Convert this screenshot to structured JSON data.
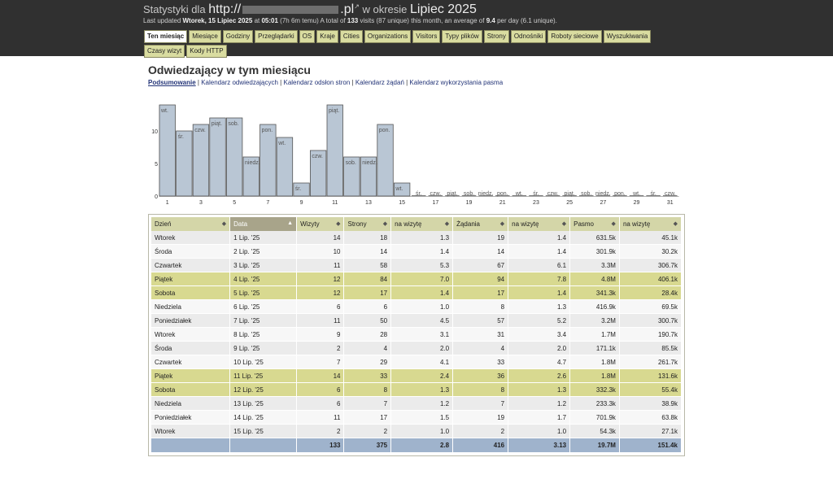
{
  "header": {
    "title_prefix": "Statystyki dla",
    "url_start": "http://",
    "url_end": ".pl",
    "period_label": "w okresie",
    "period": "Lipiec 2025",
    "last_updated_label": "Last updated",
    "last_updated_date": "Wtorek, 15 Lipiec 2025",
    "at_label": "at",
    "last_updated_time": "05:01",
    "time_ago": "(7h 6m temu)",
    "total_prefix": "A total of",
    "total_visits": "133",
    "total_suffix": "visits (87 unique) this month, an average of",
    "avg_per_day": "9.4",
    "avg_suffix": "per day (6.1 unique)."
  },
  "tabs": [
    {
      "label": "Ten miesiąc",
      "active": true
    },
    {
      "label": "Miesiące"
    },
    {
      "label": "Godziny"
    },
    {
      "label": "Przeglądarki"
    },
    {
      "label": "OS"
    },
    {
      "label": "Kraje"
    },
    {
      "label": "Cities"
    },
    {
      "label": "Organizations"
    },
    {
      "label": "Visitors"
    },
    {
      "label": "Typy plików"
    },
    {
      "label": "Strony"
    },
    {
      "label": "Odnośniki"
    },
    {
      "label": "Roboty sieciowe"
    },
    {
      "label": "Wyszukiwania"
    },
    {
      "label": "Czasy wizyt"
    },
    {
      "label": "Kody HTTP"
    }
  ],
  "section": {
    "title": "Odwiedzający w tym miesiącu",
    "links": [
      {
        "label": "Podsumowanie",
        "current": true
      },
      {
        "label": "Kalendarz odwiedzających"
      },
      {
        "label": "Kalendarz odsłon stron"
      },
      {
        "label": "Kalendarz żądań"
      },
      {
        "label": "Kalendarz wykorzystania pasma"
      }
    ],
    "separator": " | "
  },
  "chart_data": {
    "type": "bar",
    "categories": [
      "1",
      "2",
      "3",
      "4",
      "5",
      "6",
      "7",
      "8",
      "9",
      "10",
      "11",
      "12",
      "13",
      "14",
      "15",
      "16",
      "17",
      "18",
      "19",
      "20",
      "21",
      "22",
      "23",
      "24",
      "25",
      "26",
      "27",
      "28",
      "29",
      "30",
      "31"
    ],
    "x_tick_labels": [
      "1",
      "",
      "3",
      "",
      "5",
      "",
      "7",
      "",
      "9",
      "",
      "11",
      "",
      "13",
      "",
      "15",
      "",
      "17",
      "",
      "19",
      "",
      "21",
      "",
      "23",
      "",
      "25",
      "",
      "27",
      "",
      "29",
      "",
      "31"
    ],
    "day_labels": [
      "wt.",
      "śr.",
      "czw.",
      "piąt.",
      "sob.",
      "niedz.",
      "pon.",
      "wt.",
      "śr.",
      "czw.",
      "piąt.",
      "sob.",
      "niedz.",
      "pon.",
      "wt.",
      "śr.",
      "czw.",
      "piąt.",
      "sob.",
      "niedz.",
      "pon.",
      "wt.",
      "śr.",
      "czw.",
      "piąt.",
      "sob.",
      "niedz.",
      "pon.",
      "wt.",
      "śr.",
      "czw."
    ],
    "values": [
      14,
      10,
      11,
      12,
      12,
      6,
      11,
      9,
      2,
      7,
      14,
      6,
      6,
      11,
      2,
      null,
      null,
      null,
      null,
      null,
      null,
      null,
      null,
      null,
      null,
      null,
      null,
      null,
      null,
      null,
      null
    ],
    "y_ticks": [
      "0",
      "5",
      "10"
    ],
    "ylim": [
      0,
      14
    ],
    "bar_color": "#b9c6d4"
  },
  "table": {
    "headers": [
      "Dzień",
      "Data",
      "Wizyty",
      "Strony",
      "na wizytę",
      "Żądania",
      "na wizytę",
      "Pasmo",
      "na wizytę"
    ],
    "rows": [
      {
        "day": "Wtorek",
        "date": "1 Lip. '25",
        "visits": "14",
        "pages": "18",
        "ppv": "1.3",
        "req": "19",
        "rpv": "1.4",
        "bw": "631.5k",
        "bwpv": "45.1k"
      },
      {
        "day": "Środa",
        "date": "2 Lip. '25",
        "visits": "10",
        "pages": "14",
        "ppv": "1.4",
        "req": "14",
        "rpv": "1.4",
        "bw": "301.9k",
        "bwpv": "30.2k"
      },
      {
        "day": "Czwartek",
        "date": "3 Lip. '25",
        "visits": "11",
        "pages": "58",
        "ppv": "5.3",
        "req": "67",
        "rpv": "6.1",
        "bw": "3.3M",
        "bwpv": "306.7k"
      },
      {
        "day": "Piątek",
        "date": "4 Lip. '25",
        "visits": "12",
        "pages": "84",
        "ppv": "7.0",
        "req": "94",
        "rpv": "7.8",
        "bw": "4.8M",
        "bwpv": "406.1k",
        "weekend": true
      },
      {
        "day": "Sobota",
        "date": "5 Lip. '25",
        "visits": "12",
        "pages": "17",
        "ppv": "1.4",
        "req": "17",
        "rpv": "1.4",
        "bw": "341.3k",
        "bwpv": "28.4k",
        "weekend": true
      },
      {
        "day": "Niedziela",
        "date": "6 Lip. '25",
        "visits": "6",
        "pages": "6",
        "ppv": "1.0",
        "req": "8",
        "rpv": "1.3",
        "bw": "416.9k",
        "bwpv": "69.5k"
      },
      {
        "day": "Poniedziałek",
        "date": "7 Lip. '25",
        "visits": "11",
        "pages": "50",
        "ppv": "4.5",
        "req": "57",
        "rpv": "5.2",
        "bw": "3.2M",
        "bwpv": "300.7k"
      },
      {
        "day": "Wtorek",
        "date": "8 Lip. '25",
        "visits": "9",
        "pages": "28",
        "ppv": "3.1",
        "req": "31",
        "rpv": "3.4",
        "bw": "1.7M",
        "bwpv": "190.7k"
      },
      {
        "day": "Środa",
        "date": "9 Lip. '25",
        "visits": "2",
        "pages": "4",
        "ppv": "2.0",
        "req": "4",
        "rpv": "2.0",
        "bw": "171.1k",
        "bwpv": "85.5k"
      },
      {
        "day": "Czwartek",
        "date": "10 Lip. '25",
        "visits": "7",
        "pages": "29",
        "ppv": "4.1",
        "req": "33",
        "rpv": "4.7",
        "bw": "1.8M",
        "bwpv": "261.7k"
      },
      {
        "day": "Piątek",
        "date": "11 Lip. '25",
        "visits": "14",
        "pages": "33",
        "ppv": "2.4",
        "req": "36",
        "rpv": "2.6",
        "bw": "1.8M",
        "bwpv": "131.6k",
        "weekend": true
      },
      {
        "day": "Sobota",
        "date": "12 Lip. '25",
        "visits": "6",
        "pages": "8",
        "ppv": "1.3",
        "req": "8",
        "rpv": "1.3",
        "bw": "332.3k",
        "bwpv": "55.4k",
        "weekend": true
      },
      {
        "day": "Niedziela",
        "date": "13 Lip. '25",
        "visits": "6",
        "pages": "7",
        "ppv": "1.2",
        "req": "7",
        "rpv": "1.2",
        "bw": "233.3k",
        "bwpv": "38.9k"
      },
      {
        "day": "Poniedziałek",
        "date": "14 Lip. '25",
        "visits": "11",
        "pages": "17",
        "ppv": "1.5",
        "req": "19",
        "rpv": "1.7",
        "bw": "701.9k",
        "bwpv": "63.8k"
      },
      {
        "day": "Wtorek",
        "date": "15 Lip. '25",
        "visits": "2",
        "pages": "2",
        "ppv": "1.0",
        "req": "2",
        "rpv": "1.0",
        "bw": "54.3k",
        "bwpv": "27.1k"
      }
    ],
    "totals": {
      "visits": "133",
      "pages": "375",
      "ppv": "2.8",
      "req": "416",
      "rpv": "3.13",
      "bw": "19.7M",
      "bwpv": "151.4k"
    }
  },
  "colors": {
    "header_bg": "#303030",
    "tab_bg": "#d9dca0",
    "weekend_row": "#d8d990",
    "total_row": "#9fb3cc",
    "sorted_header": "#a8a48a"
  }
}
